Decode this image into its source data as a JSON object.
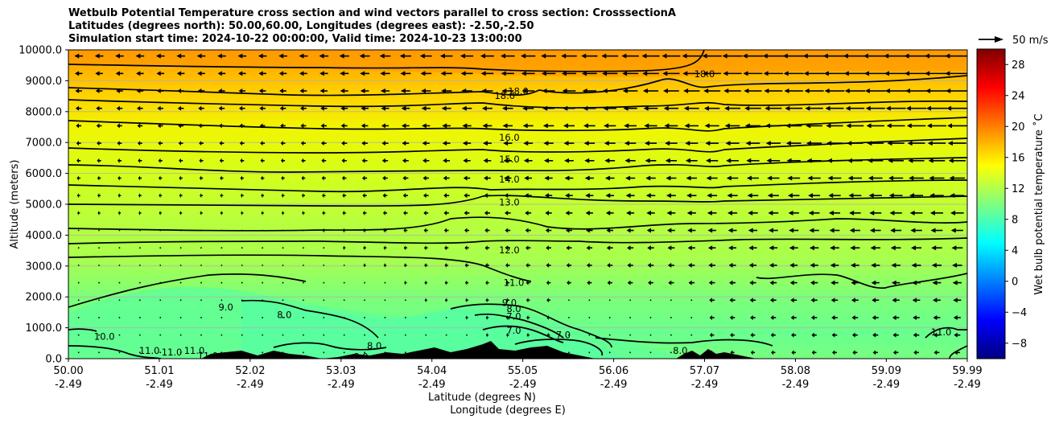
{
  "title_lines": [
    "Wetbulb Potential Temperature cross section and wind vectors parallel to cross section: CrosssectionA",
    "Latitudes (degrees north): 50.00,60.00, Longitudes (degrees east): -2.50,-2.50",
    "Simulation start time: 2024-10-22 00:00:00, Valid time: 2024-10-23 13:00:00"
  ],
  "chart_data": {
    "type": "heatmap",
    "subtype": "cross-section contour with wind vectors",
    "xlabel": "Latitude (degrees N)",
    "xlabel2": "Longitude (degrees E)",
    "ylabel": "Altitude (meters)",
    "xlim": [
      50.0,
      59.99
    ],
    "ylim": [
      0,
      10000
    ],
    "x_ticks": [
      {
        "lat": "50.00",
        "lon": "-2.49",
        "value": 50.0
      },
      {
        "lat": "51.01",
        "lon": "-2.49",
        "value": 51.01
      },
      {
        "lat": "52.02",
        "lon": "-2.49",
        "value": 52.02
      },
      {
        "lat": "53.03",
        "lon": "-2.49",
        "value": 53.03
      },
      {
        "lat": "54.04",
        "lon": "-2.49",
        "value": 54.04
      },
      {
        "lat": "55.05",
        "lon": "-2.49",
        "value": 55.05
      },
      {
        "lat": "56.06",
        "lon": "-2.49",
        "value": 56.06
      },
      {
        "lat": "57.07",
        "lon": "-2.49",
        "value": 57.07
      },
      {
        "lat": "58.08",
        "lon": "-2.49",
        "value": 58.08
      },
      {
        "lat": "59.09",
        "lon": "-2.49",
        "value": 59.09
      },
      {
        "lat": "59.99",
        "lon": "-2.49",
        "value": 59.99
      }
    ],
    "y_ticks": [
      {
        "label": "0.0",
        "value": 0
      },
      {
        "label": "1000.0",
        "value": 1000
      },
      {
        "label": "2000.0",
        "value": 2000
      },
      {
        "label": "3000.0",
        "value": 3000
      },
      {
        "label": "4000.0",
        "value": 4000
      },
      {
        "label": "5000.0",
        "value": 5000
      },
      {
        "label": "6000.0",
        "value": 6000
      },
      {
        "label": "7000.0",
        "value": 7000
      },
      {
        "label": "8000.0",
        "value": 8000
      },
      {
        "label": "9000.0",
        "value": 9000
      },
      {
        "label": "10000.0",
        "value": 10000
      }
    ],
    "grid": "horizontal",
    "colorbar": {
      "label": "Wet bulb potential temperature $^\\circ$C",
      "label_display": "Wet bulb potential temperature ˚C",
      "range": [
        -10,
        30
      ],
      "ticks": [
        "−8",
        "−4",
        "0",
        "4",
        "8",
        "12",
        "16",
        "20",
        "24",
        "28"
      ],
      "tick_values": [
        -8,
        -4,
        0,
        4,
        8,
        12,
        16,
        20,
        24,
        28
      ],
      "colormap": "jet",
      "placement": "right"
    },
    "quiver_key": {
      "label": "50 m/s",
      "placement": "top-right"
    },
    "contour_levels_labeled": [
      {
        "label": "18.0",
        "lat": 57.07,
        "alt": 9200
      },
      {
        "label": "18.0",
        "lat": 54.85,
        "alt": 8500
      },
      {
        "label": "18.0",
        "lat": 55.0,
        "alt": 8650
      },
      {
        "label": "16.0",
        "lat": 54.9,
        "alt": 7150
      },
      {
        "label": "15.0",
        "lat": 54.9,
        "alt": 6450
      },
      {
        "label": "14.0",
        "lat": 54.9,
        "alt": 5800
      },
      {
        "label": "13.0",
        "lat": 54.9,
        "alt": 5050
      },
      {
        "label": "12.0",
        "lat": 54.9,
        "alt": 3500
      },
      {
        "label": "11.0",
        "lat": 54.95,
        "alt": 2450
      },
      {
        "label": "9.0",
        "lat": 54.9,
        "alt": 1800
      },
      {
        "label": "8.0",
        "lat": 54.95,
        "alt": 1600
      },
      {
        "label": "7.0",
        "lat": 54.95,
        "alt": 1350
      },
      {
        "label": "7.0",
        "lat": 54.95,
        "alt": 900
      },
      {
        "label": "7.0",
        "lat": 55.5,
        "alt": 750
      },
      {
        "label": "9.0",
        "lat": 51.75,
        "alt": 1650
      },
      {
        "label": "8.0",
        "lat": 52.4,
        "alt": 1400
      },
      {
        "label": "8.0",
        "lat": 53.25,
        "alt": 50
      },
      {
        "label": "8.0",
        "lat": 53.4,
        "alt": 400
      },
      {
        "label": "10.0",
        "lat": 50.4,
        "alt": 700
      },
      {
        "label": "11.0",
        "lat": 50.9,
        "alt": 250
      },
      {
        "label": "11.0",
        "lat": 51.15,
        "alt": 200
      },
      {
        "label": "11.0",
        "lat": 51.4,
        "alt": 250
      },
      {
        "label": "11.0",
        "lat": 51.55,
        "alt": 80
      },
      {
        "label": "8.0",
        "lat": 56.8,
        "alt": 250
      },
      {
        "label": "11.0",
        "lat": 59.7,
        "alt": 850
      }
    ],
    "series": [
      {
        "name": "wind_vectors",
        "direction": "westward (negative along section)",
        "strength_increases_with": "altitude and latitude"
      }
    ]
  }
}
